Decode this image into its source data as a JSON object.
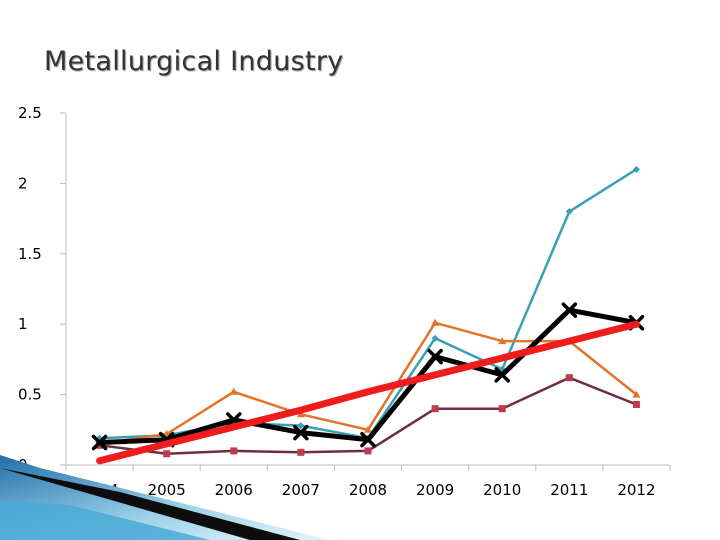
{
  "chart_data": {
    "type": "line",
    "title": "Metallurgical Industry",
    "categories": [
      "2004",
      "2005",
      "2006",
      "2007",
      "2008",
      "2009",
      "2010",
      "2011",
      "2012"
    ],
    "ylim": [
      0,
      2.5
    ],
    "yticks": [
      "0",
      "0.5",
      "1",
      "1.5",
      "2",
      "2.5"
    ],
    "grid": false,
    "series": [
      {
        "color": "#3a9fb2",
        "marker": "diamond",
        "width": 2.5,
        "values": [
          0.19,
          0.21,
          0.3,
          0.28,
          0.19,
          0.9,
          0.68,
          1.8,
          2.1
        ]
      },
      {
        "color": "#e1742a",
        "marker": "triangle",
        "width": 2.5,
        "values": [
          0.15,
          0.22,
          0.52,
          0.36,
          0.25,
          1.01,
          0.88,
          0.88,
          0.5
        ]
      },
      {
        "color": "#6b3040",
        "marker": "square",
        "width": 2.5,
        "values": [
          0.14,
          0.08,
          0.1,
          0.09,
          0.1,
          0.4,
          0.4,
          0.62,
          0.43
        ]
      },
      {
        "color": "#000000",
        "marker": "x",
        "width": 5,
        "values": [
          0.16,
          0.18,
          0.32,
          0.23,
          0.18,
          0.77,
          0.64,
          1.1,
          1.01
        ]
      },
      {
        "color": "#ee1c1c",
        "marker": "none",
        "width": 7,
        "values": [
          0.03,
          0.15,
          0.27,
          0.39,
          0.52,
          0.64,
          0.76,
          0.88,
          1.0
        ]
      }
    ]
  }
}
